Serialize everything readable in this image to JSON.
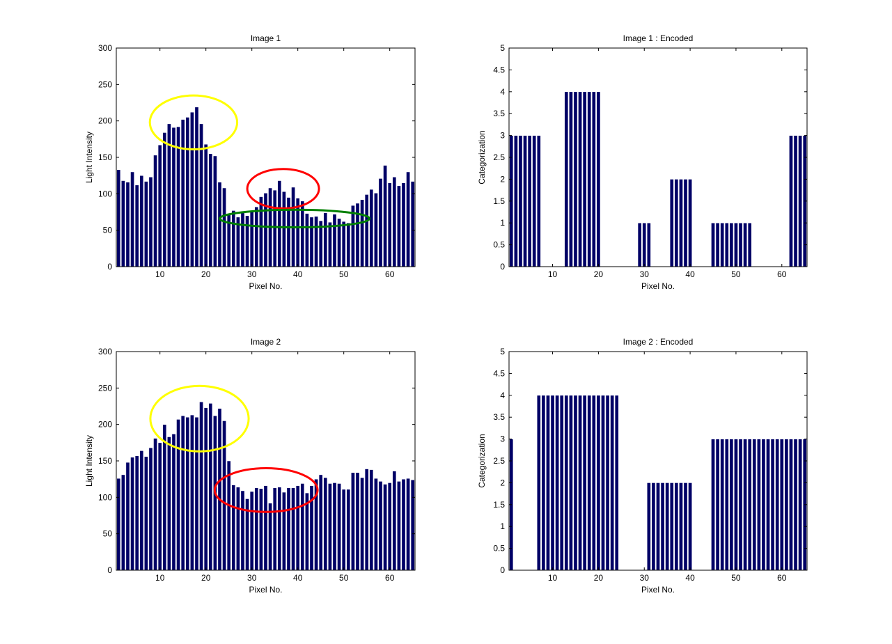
{
  "figure": {
    "background": "#ffffff",
    "bar_color": "#000066",
    "bar_edge_color": "#ffffff"
  },
  "chart_data": [
    {
      "type": "bar",
      "title": "Image 1",
      "xlabel": "Pixel No.",
      "ylabel": "Light Intensity",
      "xlim": [
        0.5,
        65.5
      ],
      "ylim": [
        0,
        300
      ],
      "xticks": [
        10,
        20,
        30,
        40,
        50,
        60
      ],
      "yticks": [
        0,
        50,
        100,
        150,
        200,
        250,
        300
      ],
      "x": [
        1,
        2,
        3,
        4,
        5,
        6,
        7,
        8,
        9,
        10,
        11,
        12,
        13,
        14,
        15,
        16,
        17,
        18,
        19,
        20,
        21,
        22,
        23,
        24,
        25,
        26,
        27,
        28,
        29,
        30,
        31,
        32,
        33,
        34,
        35,
        36,
        37,
        38,
        39,
        40,
        41,
        42,
        43,
        44,
        45,
        46,
        47,
        48,
        49,
        50,
        51,
        52,
        53,
        54,
        55,
        56,
        57,
        58,
        59,
        60,
        61,
        62,
        63,
        64,
        65
      ],
      "values": [
        133,
        118,
        116,
        130,
        112,
        125,
        117,
        123,
        153,
        167,
        184,
        196,
        191,
        192,
        202,
        205,
        212,
        219,
        196,
        168,
        155,
        152,
        116,
        108,
        71,
        77,
        68,
        74,
        70,
        77,
        82,
        96,
        101,
        108,
        105,
        118,
        103,
        95,
        109,
        94,
        90,
        73,
        68,
        69,
        63,
        74,
        61,
        72,
        66,
        62,
        60,
        84,
        87,
        92,
        99,
        106,
        101,
        121,
        139,
        115,
        123,
        111,
        115,
        130,
        117
      ],
      "annotations": [
        {
          "shape": "ellipse",
          "color": "#ffff00",
          "x_center": 17.3,
          "y_center": 198,
          "x_radius": 9.5,
          "y_radius": 37
        },
        {
          "shape": "ellipse",
          "color": "#ff0000",
          "x_center": 36.8,
          "y_center": 107,
          "x_radius": 7.8,
          "y_radius": 27
        },
        {
          "shape": "ellipse",
          "color": "#008000",
          "x_center": 39.3,
          "y_center": 66,
          "x_radius": 16.3,
          "y_radius": 12
        }
      ]
    },
    {
      "type": "bar",
      "title": "Image 1 : Encoded",
      "xlabel": "Pixel No.",
      "ylabel": "Categorization",
      "xlim": [
        0.5,
        65.5
      ],
      "ylim": [
        0,
        5
      ],
      "xticks": [
        10,
        20,
        30,
        40,
        50,
        60
      ],
      "yticks": [
        0,
        0.5,
        1,
        1.5,
        2,
        2.5,
        3,
        3.5,
        4,
        4.5,
        5
      ],
      "x": [
        1,
        2,
        3,
        4,
        5,
        6,
        7,
        8,
        9,
        10,
        11,
        12,
        13,
        14,
        15,
        16,
        17,
        18,
        19,
        20,
        21,
        22,
        23,
        24,
        25,
        26,
        27,
        28,
        29,
        30,
        31,
        32,
        33,
        34,
        35,
        36,
        37,
        38,
        39,
        40,
        41,
        42,
        43,
        44,
        45,
        46,
        47,
        48,
        49,
        50,
        51,
        52,
        53,
        54,
        55,
        56,
        57,
        58,
        59,
        60,
        61,
        62,
        63,
        64,
        65
      ],
      "values": [
        3,
        3,
        3,
        3,
        3,
        3,
        3,
        0,
        0,
        0,
        0,
        0,
        4,
        4,
        4,
        4,
        4,
        4,
        4,
        4,
        0,
        0,
        0,
        0,
        0,
        0,
        0,
        0,
        1,
        1,
        1,
        0,
        0,
        0,
        0,
        2,
        2,
        2,
        2,
        2,
        0,
        0,
        0,
        0,
        1,
        1,
        1,
        1,
        1,
        1,
        1,
        1,
        1,
        0,
        0,
        0,
        0,
        0,
        0,
        0,
        0,
        3,
        3,
        3,
        3
      ]
    },
    {
      "type": "bar",
      "title": "Image 2",
      "xlabel": "Pixel No.",
      "ylabel": "Light Intensity",
      "xlim": [
        0.5,
        65.5
      ],
      "ylim": [
        0,
        300
      ],
      "xticks": [
        10,
        20,
        30,
        40,
        50,
        60
      ],
      "yticks": [
        0,
        50,
        100,
        150,
        200,
        250,
        300
      ],
      "x": [
        1,
        2,
        3,
        4,
        5,
        6,
        7,
        8,
        9,
        10,
        11,
        12,
        13,
        14,
        15,
        16,
        17,
        18,
        19,
        20,
        21,
        22,
        23,
        24,
        25,
        26,
        27,
        28,
        29,
        30,
        31,
        32,
        33,
        34,
        35,
        36,
        37,
        38,
        39,
        40,
        41,
        42,
        43,
        44,
        45,
        46,
        47,
        48,
        49,
        50,
        51,
        52,
        53,
        54,
        55,
        56,
        57,
        58,
        59,
        60,
        61,
        62,
        63,
        64,
        65
      ],
      "values": [
        126,
        131,
        148,
        155,
        157,
        164,
        156,
        168,
        181,
        175,
        200,
        183,
        187,
        207,
        212,
        210,
        213,
        210,
        231,
        223,
        229,
        212,
        222,
        205,
        150,
        117,
        114,
        109,
        98,
        108,
        113,
        112,
        116,
        92,
        113,
        114,
        107,
        113,
        113,
        116,
        119,
        106,
        116,
        125,
        131,
        127,
        119,
        120,
        119,
        111,
        111,
        134,
        134,
        127,
        139,
        138,
        126,
        122,
        118,
        120,
        136,
        122,
        125,
        126,
        124
      ],
      "annotations": [
        {
          "shape": "ellipse",
          "color": "#ffff00",
          "x_center": 18.6,
          "y_center": 208,
          "x_radius": 10.7,
          "y_radius": 45
        },
        {
          "shape": "ellipse",
          "color": "#ff0000",
          "x_center": 33.1,
          "y_center": 110,
          "x_radius": 11.2,
          "y_radius": 30
        }
      ]
    },
    {
      "type": "bar",
      "title": "Image 2 : Encoded",
      "xlabel": "Pixel No.",
      "ylabel": "Categorization",
      "xlim": [
        0.5,
        65.5
      ],
      "ylim": [
        0,
        5
      ],
      "xticks": [
        10,
        20,
        30,
        40,
        50,
        60
      ],
      "yticks": [
        0,
        0.5,
        1,
        1.5,
        2,
        2.5,
        3,
        3.5,
        4,
        4.5,
        5
      ],
      "x": [
        1,
        2,
        3,
        4,
        5,
        6,
        7,
        8,
        9,
        10,
        11,
        12,
        13,
        14,
        15,
        16,
        17,
        18,
        19,
        20,
        21,
        22,
        23,
        24,
        25,
        26,
        27,
        28,
        29,
        30,
        31,
        32,
        33,
        34,
        35,
        36,
        37,
        38,
        39,
        40,
        41,
        42,
        43,
        44,
        45,
        46,
        47,
        48,
        49,
        50,
        51,
        52,
        53,
        54,
        55,
        56,
        57,
        58,
        59,
        60,
        61,
        62,
        63,
        64,
        65
      ],
      "values": [
        3,
        0,
        0,
        0,
        0,
        0,
        4,
        4,
        4,
        4,
        4,
        4,
        4,
        4,
        4,
        4,
        4,
        4,
        4,
        4,
        4,
        4,
        4,
        4,
        0,
        0,
        0,
        0,
        0,
        0,
        2,
        2,
        2,
        2,
        2,
        2,
        2,
        2,
        2,
        2,
        0,
        0,
        0,
        0,
        3,
        3,
        3,
        3,
        3,
        3,
        3,
        3,
        3,
        3,
        3,
        3,
        3,
        3,
        3,
        3,
        3,
        3,
        3,
        3,
        3
      ]
    }
  ]
}
